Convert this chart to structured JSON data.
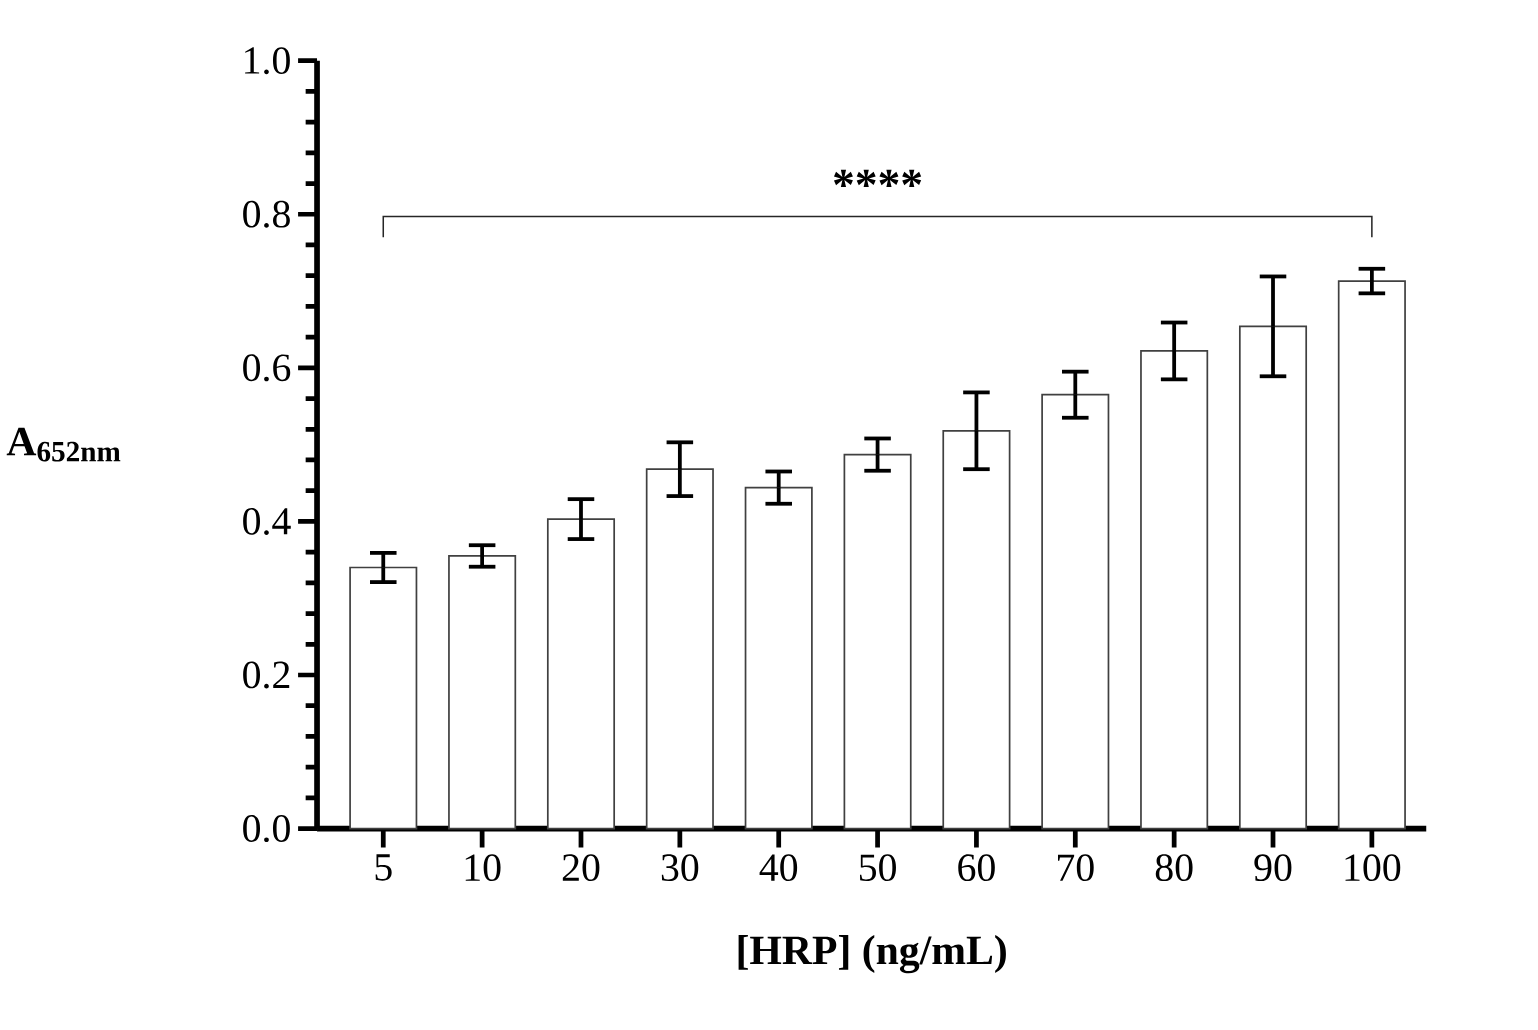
{
  "chart_data": {
    "type": "bar",
    "xlabel": "[HRP] (ng/mL)",
    "ylabel": "A$_{652nm}$",
    "categories": [
      "5",
      "10",
      "20",
      "30",
      "40",
      "50",
      "60",
      "70",
      "80",
      "90",
      "100"
    ],
    "values": [
      0.34,
      0.355,
      0.403,
      0.468,
      0.444,
      0.487,
      0.518,
      0.565,
      0.622,
      0.654,
      0.713
    ],
    "errors": [
      0.019,
      0.014,
      0.026,
      0.035,
      0.021,
      0.021,
      0.05,
      0.03,
      0.037,
      0.065,
      0.016
    ],
    "color": "#ffffff",
    "ylim": [
      0,
      1
    ],
    "yticks": [
      {
        "value": 0,
        "label": "0.0"
      },
      {
        "value": 0.2,
        "label": "0.2"
      },
      {
        "value": 0.4,
        "label": "0.4"
      },
      {
        "value": 0.6,
        "label": "0.6"
      },
      {
        "value": 0.8,
        "label": "0.8"
      },
      {
        "value": 1.0,
        "label": "1.0"
      }
    ],
    "annotations": [
      "****"
    ]
  }
}
